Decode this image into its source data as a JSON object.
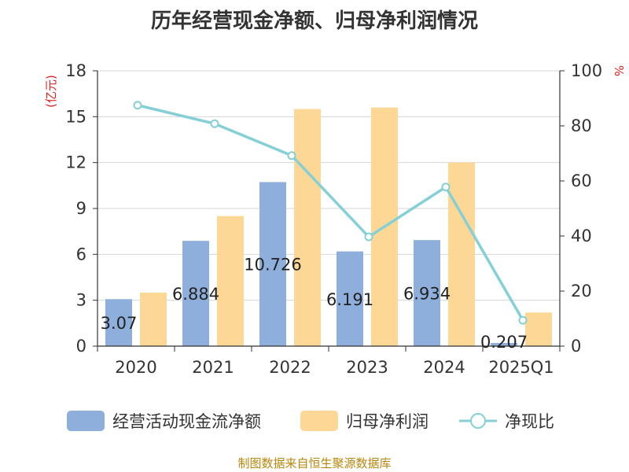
{
  "chart_data": {
    "type": "bar",
    "title": "历年经营现金净额、归母净利润情况",
    "categories": [
      "2020",
      "2021",
      "2022",
      "2023",
      "2024",
      "2025Q1"
    ],
    "series": [
      {
        "name": "经营活动现金流净额",
        "type": "bar",
        "axis": "left",
        "color": "#8eaedc",
        "values": [
          3.07,
          6.884,
          10.726,
          6.191,
          6.934,
          0.207
        ],
        "labels": [
          "3.07",
          "6.884",
          "10.726",
          "6.191",
          "6.934",
          "0.207"
        ]
      },
      {
        "name": "归母净利润",
        "type": "bar",
        "axis": "left",
        "color": "#fdd796",
        "values": [
          3.5,
          8.5,
          15.5,
          15.6,
          12.0,
          2.2
        ]
      },
      {
        "name": "净现比",
        "type": "line",
        "axis": "right",
        "color": "#85d0d6",
        "values": [
          87.5,
          80.8,
          69.2,
          39.7,
          57.8,
          9.4
        ]
      }
    ],
    "y_left": {
      "unit": "(亿元)",
      "min": 0,
      "max": 18,
      "ticks": [
        "0",
        "3",
        "6",
        "9",
        "12",
        "15",
        "18"
      ]
    },
    "y_right": {
      "unit": "%",
      "min": 0,
      "max": 100,
      "ticks": [
        "0",
        "20",
        "40",
        "60",
        "80",
        "100"
      ]
    },
    "grid": true,
    "legend_position": "bottom"
  },
  "source": "制图数据来自恒生聚源数据库"
}
